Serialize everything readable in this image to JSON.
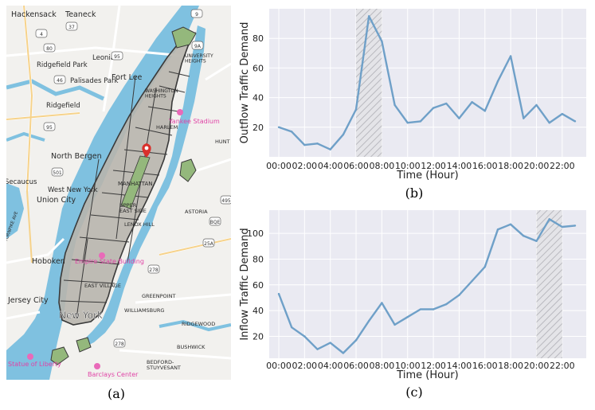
{
  "captions": {
    "map": "(a)",
    "outflow": "(b)",
    "inflow": "(c)"
  },
  "map": {
    "labels": [
      {
        "id": "hackensack",
        "text": "Hackensack"
      },
      {
        "id": "teaneck",
        "text": "Teaneck"
      },
      {
        "id": "ridgefield-park",
        "text": "Ridgefield Park"
      },
      {
        "id": "leonia",
        "text": "Leonia"
      },
      {
        "id": "palisades-park",
        "text": "Palisades Park"
      },
      {
        "id": "fort-lee",
        "text": "Fort Lee"
      },
      {
        "id": "ridgefield",
        "text": "Ridgefield"
      },
      {
        "id": "university-heights",
        "text": "UNIVERSITY\nHEIGHTS"
      },
      {
        "id": "washington-heights",
        "text": "WASHINGTON\nHEIGHTS"
      },
      {
        "id": "north-bergen",
        "text": "North Bergen"
      },
      {
        "id": "secaucus",
        "text": "Secaucus"
      },
      {
        "id": "union-city",
        "text": "Union City"
      },
      {
        "id": "west-new-york",
        "text": "West New York"
      },
      {
        "id": "harlem",
        "text": "HARLEM"
      },
      {
        "id": "manhattan",
        "text": "MANHATTAN"
      },
      {
        "id": "upper-east-side",
        "text": "UPPER\nEAST SIDE"
      },
      {
        "id": "lenox-hill",
        "text": "LENOX HILL"
      },
      {
        "id": "astoria",
        "text": "ASTORIA"
      },
      {
        "id": "hoboken",
        "text": "Hoboken"
      },
      {
        "id": "east-village",
        "text": "EAST VILLAGE"
      },
      {
        "id": "jersey-city",
        "text": "Jersey City"
      },
      {
        "id": "greenpoint",
        "text": "GREENPOINT"
      },
      {
        "id": "williamsburg",
        "text": "WILLIAMSBURG"
      },
      {
        "id": "new-york",
        "text": "New York"
      },
      {
        "id": "ridgewood",
        "text": "RIDGEWOOD"
      },
      {
        "id": "bushwick",
        "text": "BUSHWICK"
      },
      {
        "id": "bedford-stuyvesant",
        "text": "BEDFORD-\nSTUYVESANT"
      },
      {
        "id": "hunts-point",
        "text": "HUNT"
      },
      {
        "id": "turnpike",
        "text": "TURNPIKE AVE"
      }
    ],
    "pois": [
      {
        "id": "yankee-stadium",
        "text": "Yankee Stadium"
      },
      {
        "id": "empire-state",
        "text": "Empire State Building"
      },
      {
        "id": "statue-of-liberty",
        "text": "Statue of Liberty"
      },
      {
        "id": "barclays",
        "text": "Barclays Center"
      }
    ],
    "shields": [
      "4",
      "37",
      "95",
      "80",
      "46",
      "9A",
      "95",
      "501",
      "495",
      "278",
      "278",
      "25A",
      "BQE",
      "9"
    ],
    "colors": {
      "water": "#7fc1e0",
      "land": "#f2f1ee",
      "zone": "#b8b5ad",
      "park": "#94b87c",
      "road": "#ffffff",
      "poi": "#e043a6",
      "pin": "#d9302b"
    }
  },
  "chart_data": [
    {
      "type": "line",
      "name": "outflow",
      "ylabel": "Outflow Traffic Demand",
      "xlabel": "Time (Hour)",
      "x": [
        0,
        1,
        2,
        3,
        4,
        5,
        6,
        7,
        8,
        9,
        10,
        11,
        12,
        13,
        14,
        15,
        16,
        17,
        18,
        19,
        20,
        21,
        22,
        23
      ],
      "xticks": [
        "00:00",
        "02:00",
        "04:00",
        "06:00",
        "08:00",
        "10:00",
        "12:00",
        "14:00",
        "16:00",
        "18:00",
        "20:00",
        "22:00"
      ],
      "yticks": [
        20,
        40,
        60,
        80
      ],
      "values": [
        20,
        17,
        8,
        9,
        5,
        15,
        32,
        95,
        78,
        35,
        23,
        24,
        33,
        36,
        26,
        37,
        31,
        51,
        68,
        26,
        35,
        23,
        29,
        24
      ],
      "ylim": [
        0,
        100
      ],
      "highlight": [
        6,
        8
      ],
      "grid": true,
      "line_color": "#6fa0c8"
    },
    {
      "type": "line",
      "name": "inflow",
      "ylabel": "Inflow Traffic Demand",
      "xlabel": "Time (Hour)",
      "x": [
        0,
        1,
        2,
        3,
        4,
        5,
        6,
        7,
        8,
        9,
        10,
        11,
        12,
        13,
        14,
        15,
        16,
        17,
        18,
        19,
        20,
        21,
        22,
        23
      ],
      "xticks": [
        "00:00",
        "02:00",
        "04:00",
        "06:00",
        "08:00",
        "10:00",
        "12:00",
        "14:00",
        "16:00",
        "18:00",
        "20:00",
        "22:00"
      ],
      "yticks": [
        20,
        40,
        60,
        80,
        100
      ],
      "values": [
        53,
        27,
        20,
        10,
        15,
        7,
        17,
        32,
        46,
        29,
        35,
        41,
        41,
        45,
        52,
        63,
        74,
        103,
        107,
        98,
        94,
        111,
        105,
        106
      ],
      "ylim": [
        3,
        118
      ],
      "highlight": [
        20,
        22
      ],
      "grid": true,
      "line_color": "#6fa0c8"
    }
  ]
}
